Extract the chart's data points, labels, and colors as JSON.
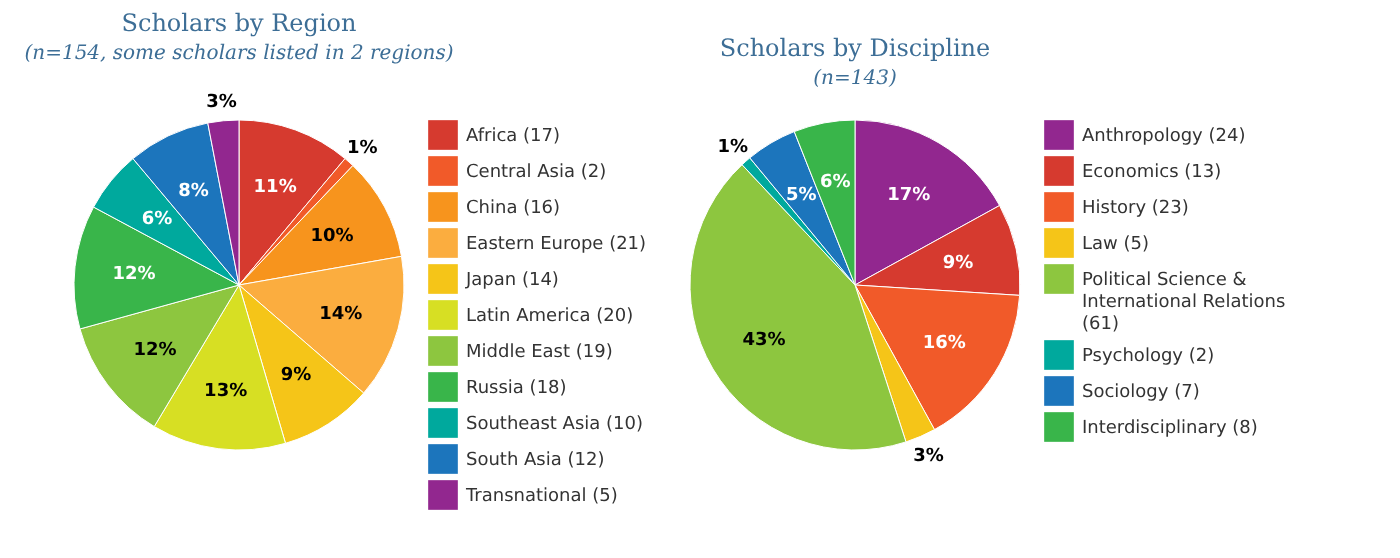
{
  "chart_data": [
    {
      "type": "pie",
      "title": "Scholars by Region",
      "subtitle": "(n=154, some scholars listed in 2 regions)",
      "legend": "right",
      "categories": [
        "Africa (17)",
        "Central Asia (2)",
        "China (16)",
        "Eastern Europe (21)",
        "Japan (14)",
        "Latin America (20)",
        "Middle East (19)",
        "Russia (18)",
        "Southeast Asia (10)",
        "South Asia (12)",
        "Transnational (5)"
      ],
      "values": [
        11,
        1,
        10,
        14,
        9,
        13,
        12,
        12,
        6,
        8,
        3
      ],
      "value_labels": [
        "11%",
        "1%",
        "10%",
        "14%",
        "9%",
        "13%",
        "12%",
        "12%",
        "6%",
        "8%",
        "3%"
      ],
      "colors": [
        "#d63a2f",
        "#f15a29",
        "#f7941d",
        "#fbad3f",
        "#f5c518",
        "#d7df23",
        "#8dc63f",
        "#39b54a",
        "#00a99d",
        "#1c75bc",
        "#92278f"
      ]
    },
    {
      "type": "pie",
      "title": "Scholars by Discipline",
      "subtitle": "(n=143)",
      "legend": "right",
      "categories": [
        "Anthropology (24)",
        "Economics (13)",
        "History (23)",
        "Law (5)",
        "Political Science & International Relations (61)",
        "Psychology (2)",
        "Sociology (7)",
        "Interdisciplinary (8)"
      ],
      "values": [
        17,
        9,
        16,
        3,
        43,
        1,
        5,
        6
      ],
      "value_labels": [
        "17%",
        "9%",
        "16%",
        "3%",
        "43%",
        "1%",
        "5%",
        "6%"
      ],
      "colors": [
        "#92278f",
        "#d63a2f",
        "#f15a29",
        "#f5c518",
        "#8dc63f",
        "#00a99d",
        "#1c75bc",
        "#39b54a"
      ]
    }
  ]
}
